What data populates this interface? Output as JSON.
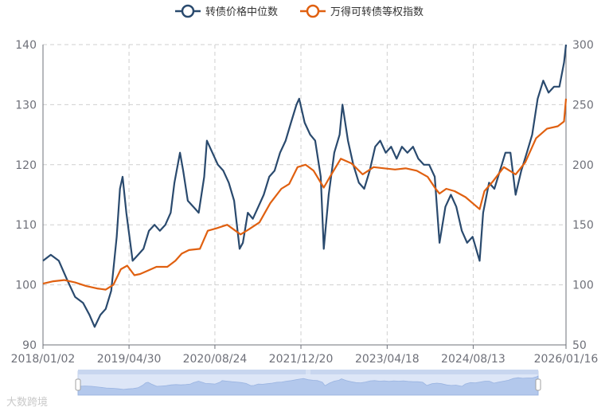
{
  "chart_data": {
    "type": "line",
    "legend_position": "top-center",
    "grid": true,
    "series": [
      {
        "name": "转债价格中位数",
        "axis": "left",
        "color": "#2a4a6e",
        "points": [
          [
            "2018/01/02",
            104
          ],
          [
            "2018/02/15",
            105
          ],
          [
            "2018/04/01",
            104
          ],
          [
            "2018/05/15",
            101
          ],
          [
            "2018/07/01",
            98
          ],
          [
            "2018/08/15",
            97
          ],
          [
            "2018/09/20",
            95
          ],
          [
            "2018/10/19",
            93
          ],
          [
            "2018/11/20",
            95
          ],
          [
            "2018/12/20",
            96
          ],
          [
            "2019/01/20",
            99
          ],
          [
            "2019/02/20",
            108
          ],
          [
            "2019/03/10",
            116
          ],
          [
            "2019/03/25",
            118
          ],
          [
            "2019/04/15",
            112
          ],
          [
            "2019/05/20",
            104
          ],
          [
            "2019/06/20",
            105
          ],
          [
            "2019/07/20",
            106
          ],
          [
            "2019/08/20",
            109
          ],
          [
            "2019/09/20",
            110
          ],
          [
            "2019/10/20",
            109
          ],
          [
            "2019/11/20",
            110
          ],
          [
            "2019/12/20",
            112
          ],
          [
            "2020/01/10",
            117
          ],
          [
            "2020/02/10",
            122
          ],
          [
            "2020/02/28",
            119
          ],
          [
            "2020/03/25",
            114
          ],
          [
            "2020/04/25",
            113
          ],
          [
            "2020/05/25",
            112
          ],
          [
            "2020/06/25",
            118
          ],
          [
            "2020/07/10",
            124
          ],
          [
            "2020/08/10",
            122
          ],
          [
            "2020/09/10",
            120
          ],
          [
            "2020/10/10",
            119
          ],
          [
            "2020/11/10",
            117
          ],
          [
            "2020/12/10",
            114
          ],
          [
            "2021/01/10",
            106
          ],
          [
            "2021/01/28",
            107
          ],
          [
            "2021/02/25",
            112
          ],
          [
            "2021/03/25",
            111
          ],
          [
            "2021/04/25",
            113
          ],
          [
            "2021/05/25",
            115
          ],
          [
            "2021/06/25",
            118
          ],
          [
            "2021/07/25",
            119
          ],
          [
            "2021/08/25",
            122
          ],
          [
            "2021/09/25",
            124
          ],
          [
            "2021/10/25",
            127
          ],
          [
            "2021/11/25",
            130
          ],
          [
            "2021/12/10",
            131
          ],
          [
            "2022/01/10",
            127
          ],
          [
            "2022/02/10",
            125
          ],
          [
            "2022/03/10",
            124
          ],
          [
            "2022/04/10",
            118
          ],
          [
            "2022/04/27",
            106
          ],
          [
            "2022/05/25",
            115
          ],
          [
            "2022/06/25",
            122
          ],
          [
            "2022/07/25",
            125
          ],
          [
            "2022/08/10",
            130
          ],
          [
            "2022/09/10",
            124
          ],
          [
            "2022/10/10",
            120
          ],
          [
            "2022/11/10",
            117
          ],
          [
            "2022/12/10",
            116
          ],
          [
            "2023/01/10",
            119
          ],
          [
            "2023/02/10",
            123
          ],
          [
            "2023/03/10",
            124
          ],
          [
            "2023/04/10",
            122
          ],
          [
            "2023/05/10",
            123
          ],
          [
            "2023/06/10",
            121
          ],
          [
            "2023/07/10",
            123
          ],
          [
            "2023/08/10",
            122
          ],
          [
            "2023/09/10",
            123
          ],
          [
            "2023/10/10",
            121
          ],
          [
            "2023/11/10",
            120
          ],
          [
            "2023/12/10",
            120
          ],
          [
            "2024/01/10",
            118
          ],
          [
            "2024/02/06",
            107
          ],
          [
            "2024/03/10",
            113
          ],
          [
            "2024/04/10",
            115
          ],
          [
            "2024/05/10",
            113
          ],
          [
            "2024/06/10",
            109
          ],
          [
            "2024/07/10",
            107
          ],
          [
            "2024/08/10",
            108
          ],
          [
            "2024/09/18",
            104
          ],
          [
            "2024/10/08",
            112
          ],
          [
            "2024/11/10",
            117
          ],
          [
            "2024/12/10",
            116
          ],
          [
            "2025/01/10",
            119
          ],
          [
            "2025/02/10",
            122
          ],
          [
            "2025/03/10",
            122
          ],
          [
            "2025/04/08",
            115
          ],
          [
            "2025/05/10",
            119
          ],
          [
            "2025/06/10",
            122
          ],
          [
            "2025/07/10",
            125
          ],
          [
            "2025/08/10",
            131
          ],
          [
            "2025/09/10",
            134
          ],
          [
            "2025/10/10",
            132
          ],
          [
            "2025/11/10",
            133
          ],
          [
            "2025/12/10",
            133
          ],
          [
            "2026/01/05",
            137
          ],
          [
            "2026/01/16",
            140
          ]
        ]
      },
      {
        "name": "万得可转债等权指数",
        "axis": "right",
        "color": "#e06010",
        "points": [
          [
            "2018/01/02",
            101
          ],
          [
            "2018/03/01",
            103
          ],
          [
            "2018/05/01",
            104
          ],
          [
            "2018/07/01",
            102
          ],
          [
            "2018/09/01",
            99
          ],
          [
            "2018/11/01",
            97
          ],
          [
            "2018/12/20",
            96
          ],
          [
            "2019/02/01",
            100
          ],
          [
            "2019/03/15",
            113
          ],
          [
            "2019/04/20",
            116
          ],
          [
            "2019/05/30",
            108
          ],
          [
            "2019/07/01",
            109
          ],
          [
            "2019/08/01",
            111
          ],
          [
            "2019/10/01",
            115
          ],
          [
            "2019/12/01",
            115
          ],
          [
            "2020/01/15",
            120
          ],
          [
            "2020/02/20",
            126
          ],
          [
            "2020/04/01",
            129
          ],
          [
            "2020/06/01",
            130
          ],
          [
            "2020/07/15",
            145
          ],
          [
            "2020/09/01",
            147
          ],
          [
            "2020/11/01",
            150
          ],
          [
            "2021/01/15",
            142
          ],
          [
            "2021/03/01",
            146
          ],
          [
            "2021/05/01",
            152
          ],
          [
            "2021/07/01",
            168
          ],
          [
            "2021/09/01",
            180
          ],
          [
            "2021/10/15",
            184
          ],
          [
            "2021/12/01",
            198
          ],
          [
            "2022/01/15",
            200
          ],
          [
            "2022/03/01",
            195
          ],
          [
            "2022/04/27",
            181
          ],
          [
            "2022/06/01",
            190
          ],
          [
            "2022/08/01",
            205
          ],
          [
            "2022/10/01",
            201
          ],
          [
            "2022/12/01",
            192
          ],
          [
            "2023/02/01",
            198
          ],
          [
            "2023/04/01",
            197
          ],
          [
            "2023/06/01",
            196
          ],
          [
            "2023/08/01",
            197
          ],
          [
            "2023/10/01",
            195
          ],
          [
            "2023/12/01",
            190
          ],
          [
            "2024/01/15",
            180
          ],
          [
            "2024/02/06",
            176
          ],
          [
            "2024/03/15",
            180
          ],
          [
            "2024/05/01",
            178
          ],
          [
            "2024/07/01",
            173
          ],
          [
            "2024/09/18",
            163
          ],
          [
            "2024/10/15",
            178
          ],
          [
            "2024/12/01",
            186
          ],
          [
            "2025/02/01",
            198
          ],
          [
            "2025/04/08",
            192
          ],
          [
            "2025/06/01",
            202
          ],
          [
            "2025/08/01",
            222
          ],
          [
            "2025/10/01",
            230
          ],
          [
            "2025/12/01",
            232
          ],
          [
            "2026/01/05",
            236
          ],
          [
            "2026/01/16",
            255
          ]
        ]
      }
    ],
    "x_axis": {
      "type": "date",
      "range": [
        "2018/01/02",
        "2026/01/16"
      ],
      "ticks": [
        "2018/01/02",
        "2019/04/30",
        "2020/08/24",
        "2021/12/20",
        "2023/04/18",
        "2024/08/13",
        "2026/01/16"
      ]
    },
    "y_left": {
      "range": [
        90,
        140
      ],
      "ticks": [
        90,
        100,
        110,
        120,
        130,
        140
      ]
    },
    "y_right": {
      "range": [
        50,
        300
      ],
      "ticks": [
        50,
        100,
        150,
        200,
        250,
        300
      ]
    }
  },
  "watermark": "大数跨境"
}
